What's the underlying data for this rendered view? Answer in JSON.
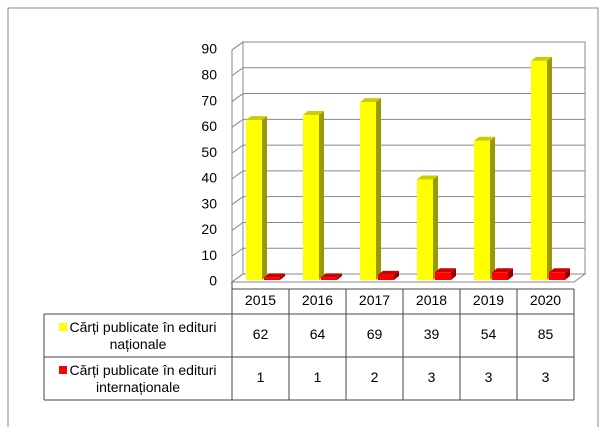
{
  "chart_data": {
    "type": "bar3d",
    "categories": [
      "2015",
      "2016",
      "2017",
      "2018",
      "2019",
      "2020"
    ],
    "series": [
      {
        "name": "Cărți publicate în edituri naționale",
        "color": "#ffff00",
        "values": [
          62,
          64,
          69,
          39,
          54,
          85
        ]
      },
      {
        "name": "Cărți publicate în edituri internaționale",
        "color": "#ff0000",
        "values": [
          1,
          1,
          2,
          3,
          3,
          3
        ]
      }
    ],
    "ylim": [
      0,
      90
    ],
    "yticks": [
      0,
      10,
      20,
      30,
      40,
      50,
      60,
      70,
      80,
      90
    ],
    "grid": true
  }
}
